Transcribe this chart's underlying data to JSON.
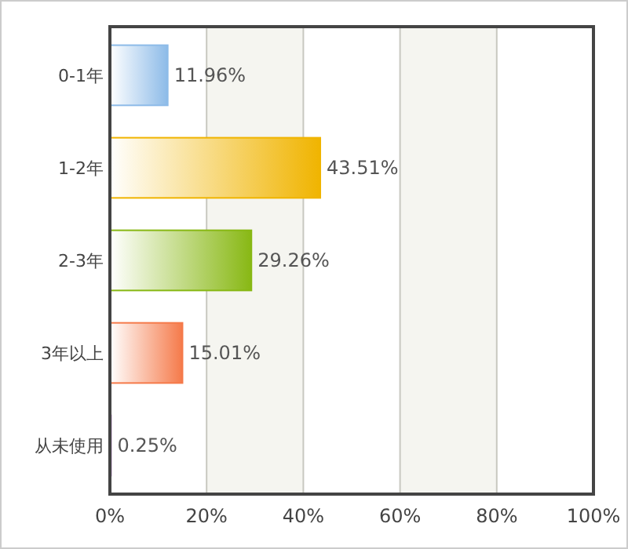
{
  "chart_data": {
    "type": "bar",
    "orientation": "horizontal",
    "categories": [
      "0-1年",
      "1-2年",
      "2-3年",
      "3年以上",
      "从未使用"
    ],
    "values": [
      11.96,
      43.51,
      29.26,
      15.01,
      0.25
    ],
    "colors": [
      "#8dbbe8",
      "#f0b400",
      "#88b814",
      "#f57a4a",
      "#c8a0d8"
    ],
    "value_labels": [
      "11.96%",
      "43.51%",
      "29.26%",
      "15.01%",
      "0.25%"
    ],
    "xlim": [
      0,
      100
    ],
    "xticks": [
      {
        "value": 0,
        "label": "0%"
      },
      {
        "value": 20,
        "label": "20%"
      },
      {
        "value": 40,
        "label": "40%"
      },
      {
        "value": 60,
        "label": "60%"
      },
      {
        "value": 80,
        "label": "80%"
      },
      {
        "value": 100,
        "label": "100%"
      }
    ],
    "grid": "x"
  }
}
